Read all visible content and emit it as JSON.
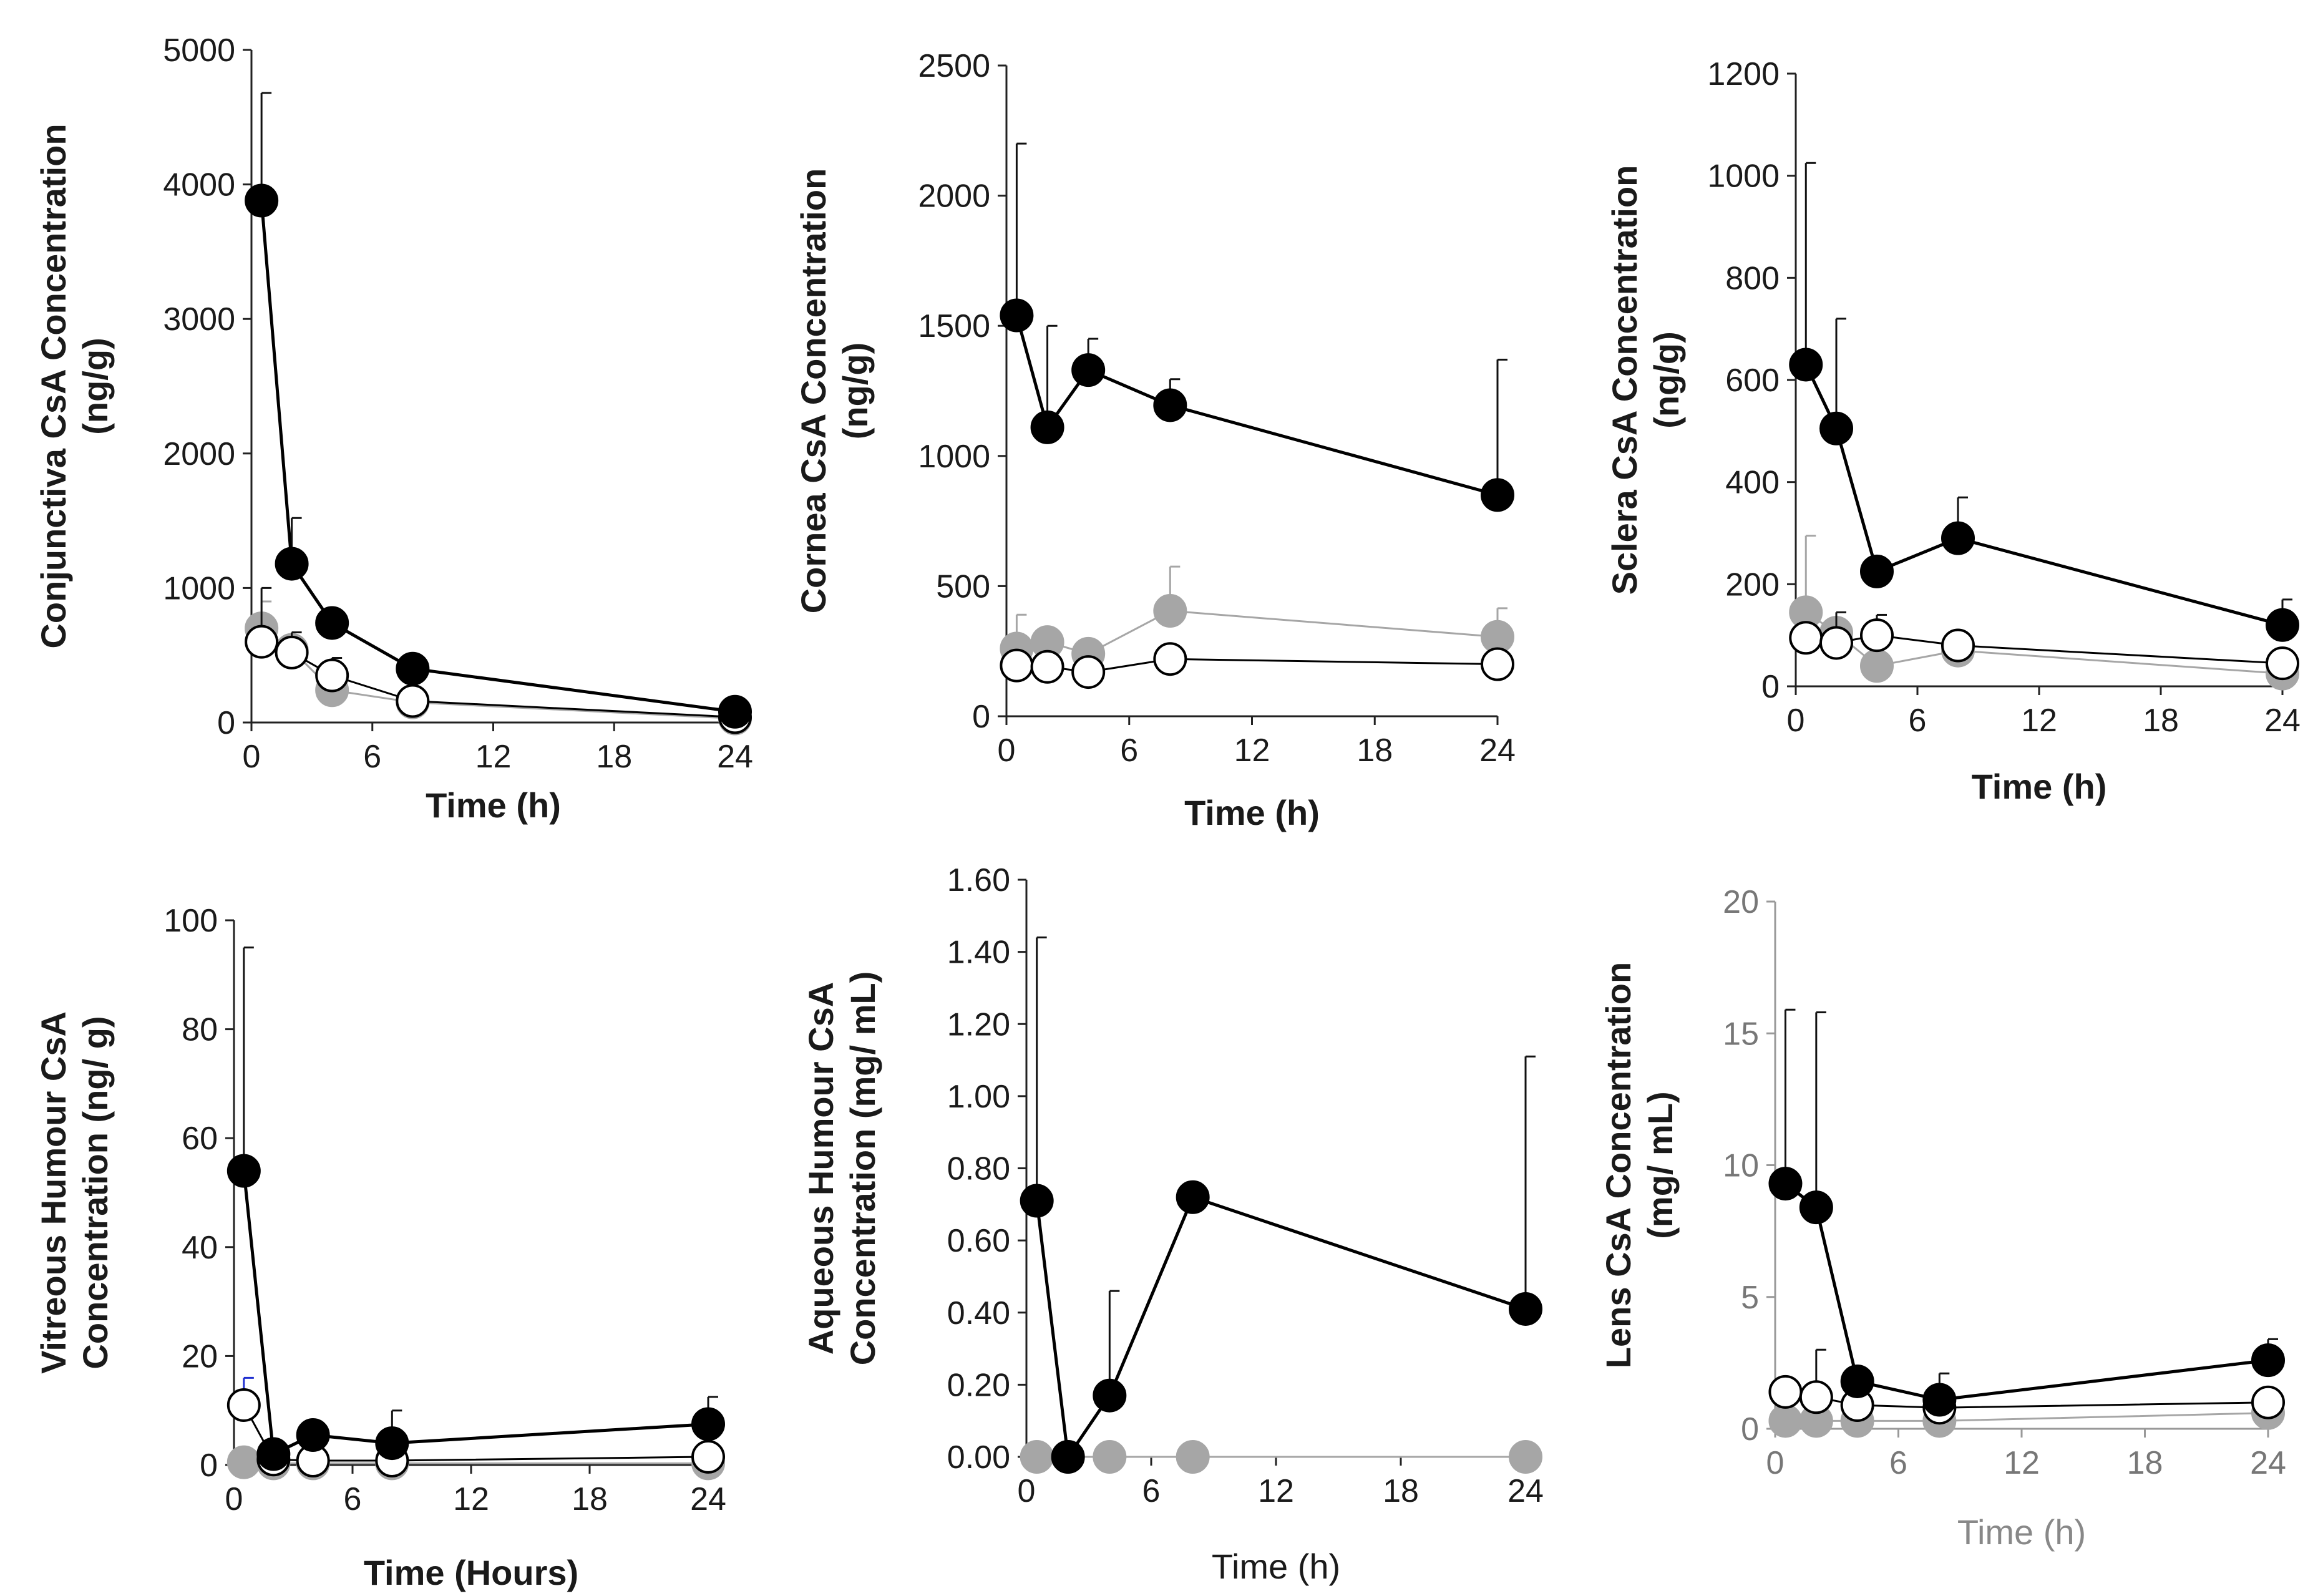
{
  "colors": {
    "filled": "#000000",
    "open": "#ffffff",
    "gray": "#a6a6a6",
    "blue_error": "#1f2fd0"
  },
  "chart_data": [
    {
      "type": "line",
      "ylabel_lines": [
        "Conjunctiva CsA Concentration",
        "(ng/g)"
      ],
      "xlabel": "Time (h)",
      "ylim": [
        0,
        5000
      ],
      "yticks": [
        "0",
        "1000",
        "2000",
        "3000",
        "4000",
        "5000"
      ],
      "xlim": [
        0,
        24
      ],
      "xticks": [
        "0",
        "6",
        "12",
        "18",
        "24"
      ],
      "series": [
        {
          "name": "filled",
          "x": [
            0.5,
            2,
            4,
            8,
            24
          ],
          "y": [
            3880,
            1180,
            740,
            400,
            80
          ],
          "err": [
            800,
            340,
            0,
            0,
            0
          ]
        },
        {
          "name": "open",
          "x": [
            0.5,
            2,
            4,
            8,
            24
          ],
          "y": [
            600,
            520,
            350,
            160,
            40
          ],
          "err": [
            400,
            150,
            130,
            0,
            0
          ]
        },
        {
          "name": "gray",
          "x": [
            0.5,
            2,
            4,
            8,
            24
          ],
          "y": [
            700,
            540,
            240,
            150,
            30
          ],
          "err": [
            200,
            0,
            0,
            0,
            0
          ]
        }
      ]
    },
    {
      "type": "line",
      "ylabel_lines": [
        "Cornea CsA Concentration",
        "(ng/g)"
      ],
      "xlabel": "Time (h)",
      "ylim": [
        0,
        2500
      ],
      "yticks": [
        "0",
        "500",
        "1000",
        "1500",
        "2000",
        "2500"
      ],
      "xlim": [
        0,
        24
      ],
      "xticks": [
        "0",
        "6",
        "12",
        "18",
        "24"
      ],
      "series": [
        {
          "name": "filled",
          "x": [
            0.5,
            2,
            4,
            8,
            24
          ],
          "y": [
            1540,
            1110,
            1330,
            1195,
            850
          ],
          "err": [
            660,
            390,
            120,
            100,
            520
          ]
        },
        {
          "name": "open",
          "x": [
            0.5,
            2,
            4,
            8,
            24
          ],
          "y": [
            195,
            190,
            170,
            220,
            200
          ],
          "err": [
            0,
            0,
            0,
            0,
            0
          ]
        },
        {
          "name": "gray",
          "x": [
            0.5,
            2,
            4,
            8,
            24
          ],
          "y": [
            260,
            285,
            240,
            405,
            305
          ],
          "err": [
            130,
            0,
            0,
            170,
            110
          ]
        }
      ]
    },
    {
      "type": "line",
      "ylabel_lines": [
        "Sclera CsA Concentration",
        "(ng/g)"
      ],
      "xlabel": "Time (h)",
      "ylim": [
        0,
        1200
      ],
      "yticks": [
        "0",
        "200",
        "400",
        "600",
        "800",
        "1000",
        "1200"
      ],
      "xlim": [
        0,
        24
      ],
      "xticks": [
        "0",
        "6",
        "12",
        "18",
        "24"
      ],
      "series": [
        {
          "name": "filled",
          "x": [
            0.5,
            2,
            4,
            8,
            24
          ],
          "y": [
            630,
            505,
            225,
            290,
            120
          ],
          "err": [
            395,
            215,
            0,
            80,
            50
          ]
        },
        {
          "name": "open",
          "x": [
            0.5,
            2,
            4,
            8,
            24
          ],
          "y": [
            95,
            85,
            100,
            80,
            45
          ],
          "err": [
            0,
            60,
            40,
            0,
            0
          ]
        },
        {
          "name": "gray",
          "x": [
            0.5,
            2,
            4,
            8,
            24
          ],
          "y": [
            145,
            105,
            40,
            70,
            25
          ],
          "err": [
            150,
            0,
            0,
            0,
            0
          ]
        }
      ]
    },
    {
      "type": "line",
      "ylabel_lines": [
        "Vitreous Humour CsA",
        "Concentration (ng/ g)"
      ],
      "xlabel": "Time (Hours)",
      "ylim": [
        0,
        100
      ],
      "yticks": [
        "0",
        "20",
        "40",
        "60",
        "80",
        "100"
      ],
      "xlim": [
        0,
        24
      ],
      "xticks": [
        "0",
        "6",
        "12",
        "18",
        "24"
      ],
      "series": [
        {
          "name": "filled",
          "x": [
            0.5,
            2,
            4,
            8,
            24
          ],
          "y": [
            54,
            2,
            5.5,
            4,
            7.5
          ],
          "err": [
            41,
            0,
            0,
            6,
            5
          ]
        },
        {
          "name": "open",
          "x": [
            0.5,
            2,
            4,
            8,
            24
          ],
          "y": [
            11,
            1,
            0.8,
            0.8,
            1.5
          ],
          "err": [
            5,
            0,
            0,
            0,
            0
          ]
        },
        {
          "name": "gray",
          "x": [
            0.5,
            2,
            4,
            8,
            24
          ],
          "y": [
            0.5,
            0.3,
            0.3,
            0.3,
            0.3
          ],
          "err": [
            0,
            0,
            0,
            0,
            0
          ]
        }
      ]
    },
    {
      "type": "line",
      "ylabel_lines": [
        "Aqueous Humour CsA",
        "Concentration (mg/ mL)"
      ],
      "xlabel": "Time (h)",
      "ylim": [
        0,
        1.6
      ],
      "yticks": [
        "0.00",
        "0.20",
        "0.40",
        "0.60",
        "0.80",
        "1.00",
        "1.20",
        "1.40",
        "1.60"
      ],
      "xlim": [
        0,
        24
      ],
      "xticks": [
        "0",
        "6",
        "12",
        "18",
        "24"
      ],
      "series": [
        {
          "name": "filled",
          "x": [
            0.5,
            2,
            4,
            8,
            24
          ],
          "y": [
            0.71,
            0.0,
            0.17,
            0.72,
            0.41
          ],
          "err": [
            0.73,
            0,
            0.29,
            0,
            0.7
          ]
        },
        {
          "name": "gray",
          "x": [
            0.5,
            2,
            4,
            8,
            24
          ],
          "y": [
            0.0,
            0.0,
            0.0,
            0.0,
            0.0
          ],
          "err": [
            0,
            0,
            0,
            0,
            0
          ]
        }
      ]
    },
    {
      "type": "line",
      "ylabel_lines": [
        "Lens CsA Concentration",
        "(mg/ mL)"
      ],
      "xlabel": "Time (h)",
      "ylim": [
        0,
        20
      ],
      "yticks": [
        "0",
        "5",
        "10",
        "15",
        "20"
      ],
      "xlim": [
        0,
        24
      ],
      "xticks": [
        "0",
        "6",
        "12",
        "18",
        "24"
      ],
      "series": [
        {
          "name": "filled",
          "x": [
            0.5,
            2,
            4,
            8,
            24
          ],
          "y": [
            9.3,
            8.4,
            1.8,
            1.1,
            2.6
          ],
          "err": [
            6.6,
            7.4,
            0,
            1.0,
            0.8
          ]
        },
        {
          "name": "open",
          "x": [
            0.5,
            2,
            4,
            8,
            24
          ],
          "y": [
            1.4,
            1.2,
            0.9,
            0.8,
            1.0
          ],
          "err": [
            0,
            1.8,
            0,
            0,
            0
          ]
        },
        {
          "name": "gray",
          "x": [
            0.5,
            2,
            4,
            8,
            24
          ],
          "y": [
            0.3,
            0.3,
            0.3,
            0.3,
            0.6
          ],
          "err": [
            0,
            0,
            0,
            0,
            0
          ]
        }
      ]
    }
  ]
}
